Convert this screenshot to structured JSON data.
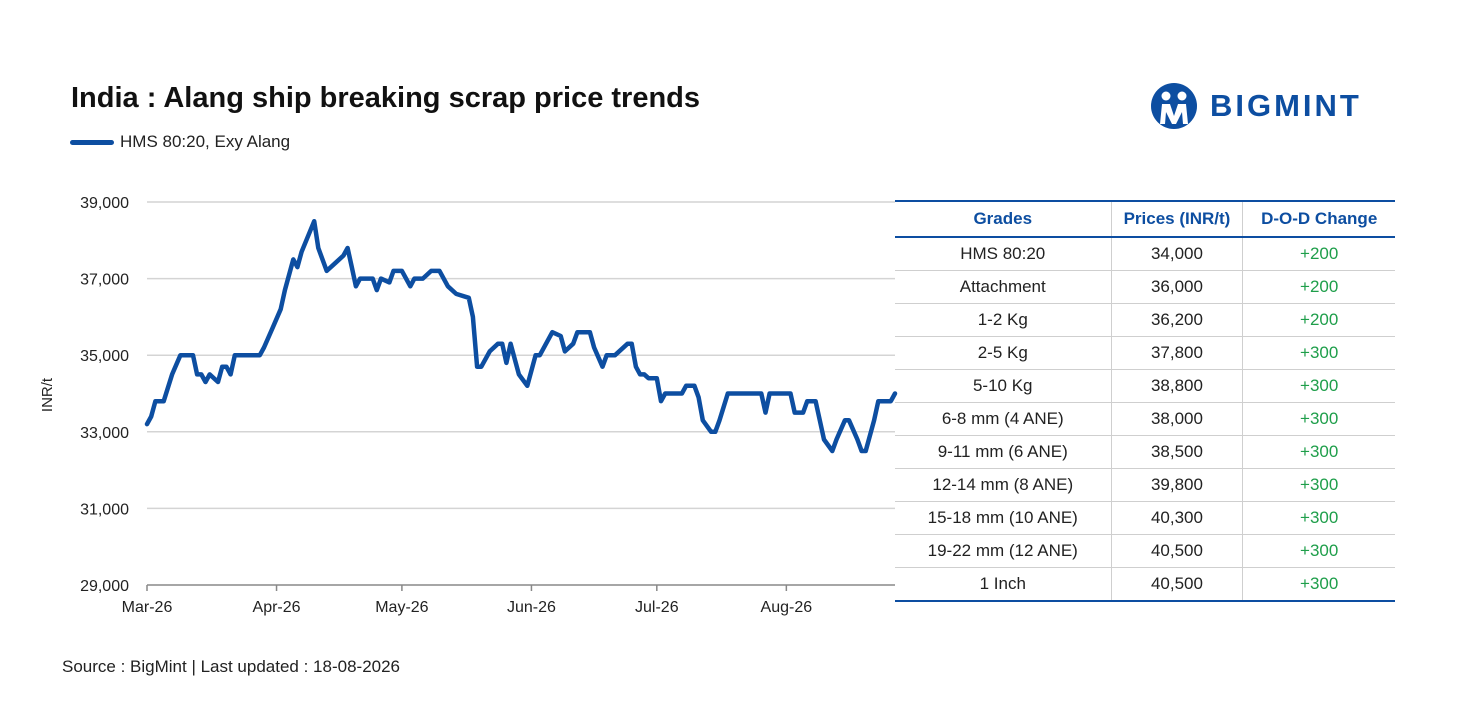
{
  "header": {
    "title": "India : Alang ship breaking scrap price trends",
    "source": "Source : BigMint | Last updated : 18-08-2026",
    "brand": "BIGMINT",
    "brand_color": "#0d4ea1",
    "logo_icon": "bigmint-logo-icon"
  },
  "chart_data": {
    "type": "line",
    "ylabel": "INR/t",
    "ylim": [
      29000,
      39000
    ],
    "yticks": [
      "39,000",
      "37,000",
      "35,000",
      "33,000",
      "31,000",
      "29,000"
    ],
    "ytick_values": [
      39000,
      37000,
      35000,
      33000,
      31000,
      29000
    ],
    "xticks": [
      "Mar-26",
      "Apr-26",
      "May-26",
      "Jun-26",
      "Jul-26",
      "Aug-26"
    ],
    "grid": true,
    "series": [
      {
        "name": "HMS 80:20, Exy Alang",
        "color": "#0d4ea1",
        "points": [
          [
            "2026-03-01",
            33200
          ],
          [
            "2026-03-02",
            33400
          ],
          [
            "2026-03-03",
            33800
          ],
          [
            "2026-03-05",
            33800
          ],
          [
            "2026-03-07",
            34500
          ],
          [
            "2026-03-09",
            35000
          ],
          [
            "2026-03-12",
            35000
          ],
          [
            "2026-03-13",
            34500
          ],
          [
            "2026-03-14",
            34500
          ],
          [
            "2026-03-15",
            34300
          ],
          [
            "2026-03-16",
            34500
          ],
          [
            "2026-03-18",
            34300
          ],
          [
            "2026-03-19",
            34700
          ],
          [
            "2026-03-20",
            34700
          ],
          [
            "2026-03-21",
            34500
          ],
          [
            "2026-03-22",
            35000
          ],
          [
            "2026-03-28",
            35000
          ],
          [
            "2026-03-29",
            35200
          ],
          [
            "2026-03-31",
            35700
          ],
          [
            "2026-04-02",
            36200
          ],
          [
            "2026-04-03",
            36700
          ],
          [
            "2026-04-05",
            37500
          ],
          [
            "2026-04-06",
            37300
          ],
          [
            "2026-04-07",
            37700
          ],
          [
            "2026-04-10",
            38500
          ],
          [
            "2026-04-11",
            37800
          ],
          [
            "2026-04-13",
            37200
          ],
          [
            "2026-04-15",
            37400
          ],
          [
            "2026-04-17",
            37600
          ],
          [
            "2026-04-18",
            37800
          ],
          [
            "2026-04-19",
            37300
          ],
          [
            "2026-04-20",
            36800
          ],
          [
            "2026-04-21",
            37000
          ],
          [
            "2026-04-24",
            37000
          ],
          [
            "2026-04-25",
            36700
          ],
          [
            "2026-04-26",
            37000
          ],
          [
            "2026-04-28",
            36900
          ],
          [
            "2026-04-29",
            37200
          ],
          [
            "2026-05-01",
            37200
          ],
          [
            "2026-05-03",
            36800
          ],
          [
            "2026-05-04",
            37000
          ],
          [
            "2026-05-06",
            37000
          ],
          [
            "2026-05-08",
            37200
          ],
          [
            "2026-05-10",
            37200
          ],
          [
            "2026-05-12",
            36800
          ],
          [
            "2026-05-14",
            36600
          ],
          [
            "2026-05-17",
            36500
          ],
          [
            "2026-05-18",
            36000
          ],
          [
            "2026-05-19",
            34700
          ],
          [
            "2026-05-20",
            34700
          ],
          [
            "2026-05-22",
            35100
          ],
          [
            "2026-05-24",
            35300
          ],
          [
            "2026-05-25",
            35300
          ],
          [
            "2026-05-26",
            34800
          ],
          [
            "2026-05-27",
            35300
          ],
          [
            "2026-05-29",
            34500
          ],
          [
            "2026-05-31",
            34200
          ],
          [
            "2026-06-02",
            35000
          ],
          [
            "2026-06-03",
            35000
          ],
          [
            "2026-06-06",
            35600
          ],
          [
            "2026-06-08",
            35500
          ],
          [
            "2026-06-09",
            35100
          ],
          [
            "2026-06-11",
            35300
          ],
          [
            "2026-06-12",
            35600
          ],
          [
            "2026-06-15",
            35600
          ],
          [
            "2026-06-16",
            35200
          ],
          [
            "2026-06-18",
            34700
          ],
          [
            "2026-06-19",
            35000
          ],
          [
            "2026-06-21",
            35000
          ],
          [
            "2026-06-24",
            35300
          ],
          [
            "2026-06-25",
            35300
          ],
          [
            "2026-06-26",
            34700
          ],
          [
            "2026-06-27",
            34500
          ],
          [
            "2026-06-28",
            34500
          ],
          [
            "2026-06-29",
            34400
          ],
          [
            "2026-07-01",
            34400
          ],
          [
            "2026-07-02",
            33800
          ],
          [
            "2026-07-03",
            34000
          ],
          [
            "2026-07-07",
            34000
          ],
          [
            "2026-07-08",
            34200
          ],
          [
            "2026-07-10",
            34200
          ],
          [
            "2026-07-11",
            33900
          ],
          [
            "2026-07-12",
            33300
          ],
          [
            "2026-07-14",
            33000
          ],
          [
            "2026-07-15",
            33000
          ],
          [
            "2026-07-16",
            33300
          ],
          [
            "2026-07-18",
            34000
          ],
          [
            "2026-07-26",
            34000
          ],
          [
            "2026-07-27",
            33500
          ],
          [
            "2026-07-28",
            34000
          ],
          [
            "2026-08-02",
            34000
          ],
          [
            "2026-08-03",
            33500
          ],
          [
            "2026-08-05",
            33500
          ],
          [
            "2026-08-06",
            33800
          ],
          [
            "2026-08-08",
            33800
          ],
          [
            "2026-08-09",
            33300
          ],
          [
            "2026-08-10",
            32800
          ],
          [
            "2026-08-12",
            32500
          ],
          [
            "2026-08-13",
            32800
          ],
          [
            "2026-08-15",
            33300
          ],
          [
            "2026-08-16",
            33300
          ],
          [
            "2026-08-18",
            32800
          ],
          [
            "2026-08-19",
            32500
          ],
          [
            "2026-08-20",
            32500
          ],
          [
            "2026-08-22",
            33300
          ],
          [
            "2026-08-23",
            33800
          ],
          [
            "2026-08-26",
            33800
          ],
          [
            "2026-08-27",
            34000
          ]
        ]
      }
    ]
  },
  "table": {
    "headers": [
      "Grades",
      "Prices (INR/t)",
      "D-O-D Change"
    ],
    "rows": [
      [
        "HMS 80:20",
        "34,000",
        "+200"
      ],
      [
        "Attachment",
        "36,000",
        "+200"
      ],
      [
        "1-2 Kg",
        "36,200",
        "+200"
      ],
      [
        "2-5 Kg",
        "37,800",
        "+300"
      ],
      [
        "5-10 Kg",
        "38,800",
        "+300"
      ],
      [
        "6-8 mm (4 ANE)",
        "38,000",
        "+300"
      ],
      [
        "9-11 mm (6 ANE)",
        "38,500",
        "+300"
      ],
      [
        "12-14 mm (8 ANE)",
        "39,800",
        "+300"
      ],
      [
        "15-18 mm (10 ANE)",
        "40,300",
        "+300"
      ],
      [
        "19-22 mm (12 ANE)",
        "40,500",
        "+300"
      ],
      [
        "1 Inch",
        "40,500",
        "+300"
      ]
    ],
    "header_color": "#0d4ea1",
    "change_color": "#1e9e4a"
  }
}
